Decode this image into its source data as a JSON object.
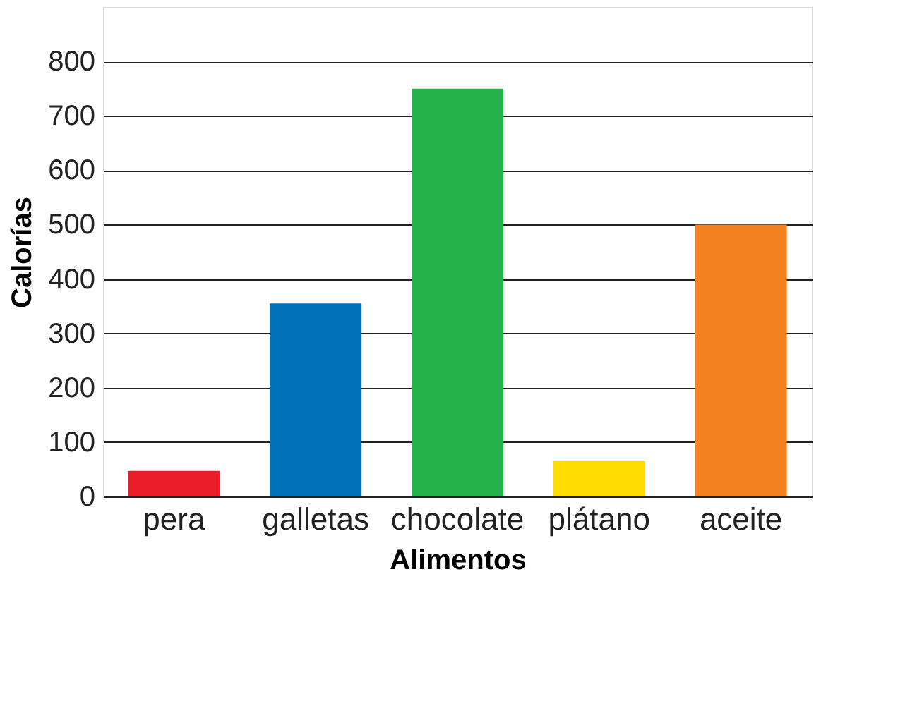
{
  "chart_data": {
    "type": "bar",
    "xlabel": "Alimentos",
    "ylabel": "Calorías",
    "categories": [
      "pera",
      "galletas",
      "chocolate",
      "plátano",
      "aceite"
    ],
    "values": [
      47,
      355,
      750,
      65,
      500
    ],
    "colors": [
      "#ed1c2b",
      "#0070bb",
      "#25b24c",
      "#ffdd00",
      "#f38120"
    ],
    "ylim": [
      0,
      900
    ],
    "yticks": [
      0,
      100,
      200,
      300,
      400,
      500,
      600,
      700,
      800
    ],
    "grid": "y"
  }
}
